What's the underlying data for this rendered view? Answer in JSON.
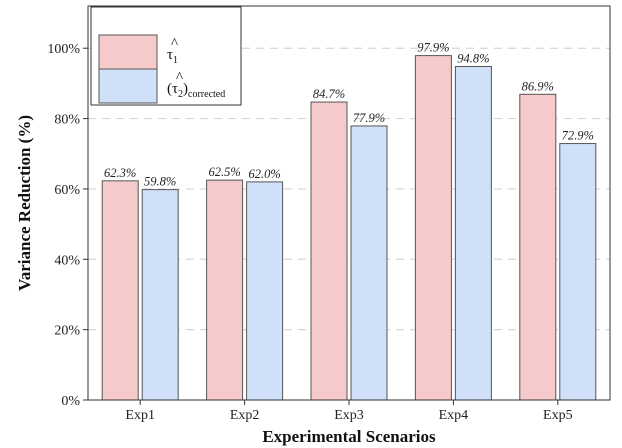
{
  "chart_data": {
    "type": "bar",
    "categories": [
      "Exp1",
      "Exp2",
      "Exp3",
      "Exp4",
      "Exp5"
    ],
    "series": [
      {
        "legend_base": "τ",
        "legend_hat": "^",
        "legend_sub": "1",
        "legend_prefix": "",
        "legend_suffix": "",
        "values": [
          62.3,
          62.5,
          84.7,
          97.9,
          86.9
        ],
        "labels": [
          "62.3%",
          "62.5%",
          "84.7%",
          "97.9%",
          "86.9%"
        ],
        "color": "#f6caca"
      },
      {
        "legend_base": "τ",
        "legend_hat": "^",
        "legend_sub": "2",
        "legend_prefix": "(",
        "legend_suffix": ")",
        "legend_outer_sub": "corrected",
        "values": [
          59.8,
          62.0,
          77.9,
          94.8,
          72.9
        ],
        "labels": [
          "59.8%",
          "62.0%",
          "77.9%",
          "94.8%",
          "72.9%"
        ],
        "color": "#cfe0f8"
      }
    ],
    "xlabel": "Experimental Scenarios",
    "ylabel": "Variance Reduction (%)",
    "ylim": [
      0,
      112
    ],
    "yticks": [
      0,
      20,
      40,
      60,
      80,
      100
    ],
    "ytick_labels": [
      "0%",
      "20%",
      "40%",
      "60%",
      "80%",
      "100%"
    ],
    "grid": "horizontal dashed",
    "legend_position": "top-left",
    "bar_edge_color": "#555555"
  }
}
